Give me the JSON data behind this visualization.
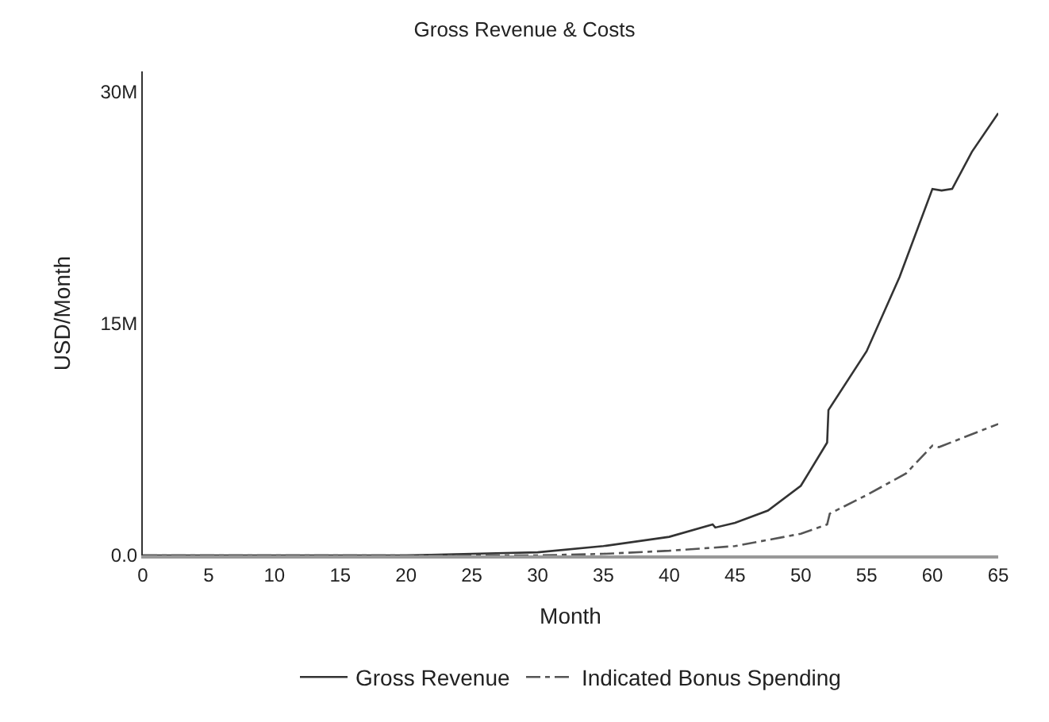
{
  "chart_data": {
    "type": "line",
    "title": "Gross Revenue & Costs",
    "xlabel": "Month",
    "ylabel": "USD/Month",
    "xlim": [
      0,
      65
    ],
    "xticks": [
      0,
      5,
      10,
      15,
      20,
      25,
      30,
      35,
      40,
      45,
      50,
      55,
      60,
      65
    ],
    "ylim": [
      0,
      31300000
    ],
    "yticks": [
      {
        "value": 0,
        "label": "0.0"
      },
      {
        "value": 15000000,
        "label": "15M"
      },
      {
        "value": 30000000,
        "label": "30M"
      }
    ],
    "legend": "bottom",
    "marker": "none",
    "series": [
      {
        "name": "Gross Revenue",
        "color": "#333333",
        "line_style": "solid",
        "x": [
          0,
          10,
          20,
          25,
          30,
          35,
          40,
          43.3,
          43.5,
          45,
          47.5,
          50,
          52,
          52.1,
          55,
          57.5,
          60,
          60.7,
          61.5,
          63,
          65
        ],
        "values": [
          0,
          0,
          0,
          100000,
          200000,
          600000,
          1200000,
          2000000,
          1800000,
          2100000,
          2900000,
          4500000,
          7300000,
          9400000,
          13200000,
          18000000,
          23700000,
          23600000,
          23700000,
          26100000,
          28600000
        ]
      },
      {
        "name": "Indicated Bonus Spending",
        "color": "#555555",
        "line_style": "dashdot",
        "x": [
          0,
          20,
          30,
          35,
          40,
          45,
          50,
          52,
          52.2,
          55,
          58,
          60,
          60.5,
          65
        ],
        "values": [
          0,
          0,
          0,
          100000,
          300000,
          600000,
          1400000,
          2000000,
          2700000,
          3900000,
          5300000,
          7100000,
          7000000,
          8500000
        ]
      }
    ]
  }
}
